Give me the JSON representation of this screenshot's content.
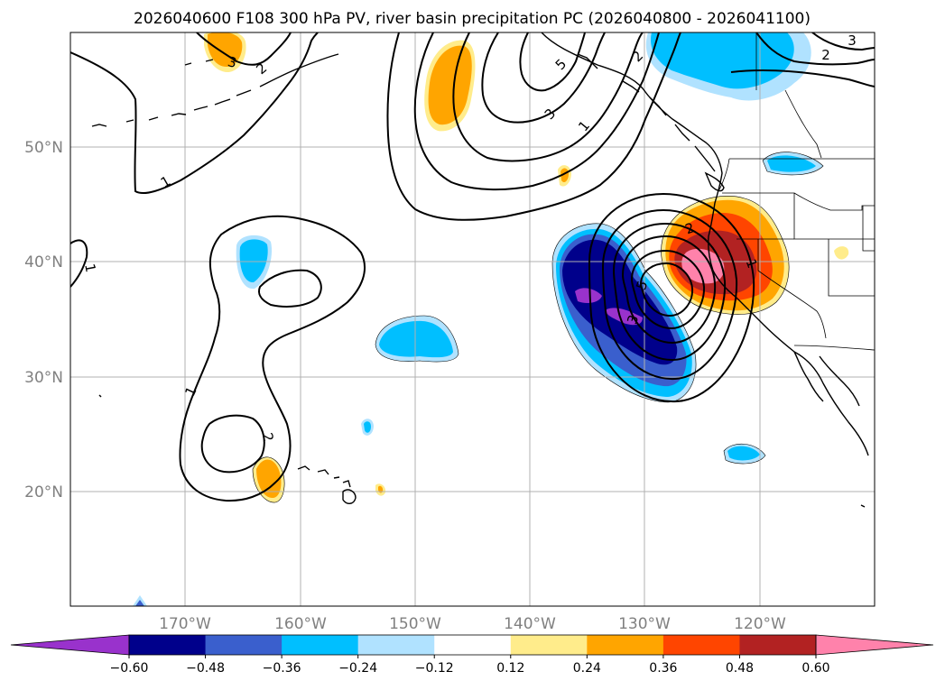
{
  "title": "2026040600 F108 300 hPa PV, river basin precipitation PC (2026040800 - 2026041100)",
  "map": {
    "lon_labels": [
      "170°W",
      "160°W",
      "150°W",
      "140°W",
      "130°W",
      "120°W"
    ],
    "lat_labels": [
      "50°N",
      "40°N",
      "30°N",
      "20°N"
    ],
    "pv_contour_labels": [
      "1",
      "2",
      "3",
      "5"
    ]
  },
  "colorbar": {
    "ticks": [
      "−0.60",
      "−0.48",
      "−0.36",
      "−0.24",
      "−0.12",
      "0.12",
      "0.24",
      "0.36",
      "0.48",
      "0.60"
    ],
    "colors": [
      "#9932cc",
      "#00008b",
      "#3a5fcd",
      "#00bfff",
      "#b0e2ff",
      "#ffffff",
      "#ffec8b",
      "#ffa500",
      "#ff4500",
      "#b22222",
      "#ff82ab"
    ]
  },
  "colors": {
    "neg_extreme": "#9932cc",
    "neg_strong": "#00008b",
    "neg_mid": "#3a5fcd",
    "neg_light": "#00bfff",
    "neg_faint": "#b0e2ff",
    "pos_faint": "#ffec8b",
    "pos_light": "#ffa500",
    "pos_mid": "#ff4500",
    "pos_strong": "#b22222",
    "pos_extreme": "#ff82ab"
  }
}
